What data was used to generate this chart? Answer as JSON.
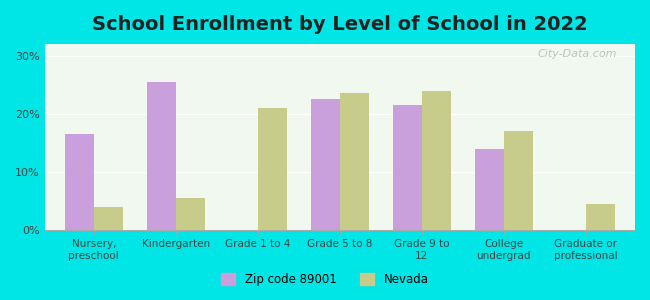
{
  "title": "School Enrollment by Level of School in 2022",
  "categories": [
    "Nursery,\npreschool",
    "Kindergarten",
    "Grade 1 to 4",
    "Grade 5 to 8",
    "Grade 9 to\n12",
    "College\nundergrad",
    "Graduate or\nprofessional"
  ],
  "zip_values": [
    16.5,
    25.5,
    0,
    22.5,
    21.5,
    14.0,
    0
  ],
  "nevada_values": [
    4.0,
    5.5,
    21.0,
    23.5,
    24.0,
    17.0,
    4.5
  ],
  "zip_color": "#c9a0dc",
  "nevada_color": "#c8cc8a",
  "background_outer": "#00e5e5",
  "background_inner": "#f0f8f0",
  "title_fontsize": 14,
  "ylabel_ticks": [
    "0%",
    "10%",
    "20%",
    "30%"
  ],
  "yticks": [
    0,
    10,
    20,
    30
  ],
  "ylim": [
    0,
    32
  ],
  "legend_label_zip": "Zip code 89001",
  "legend_label_nevada": "Nevada",
  "watermark": "City-Data.com"
}
